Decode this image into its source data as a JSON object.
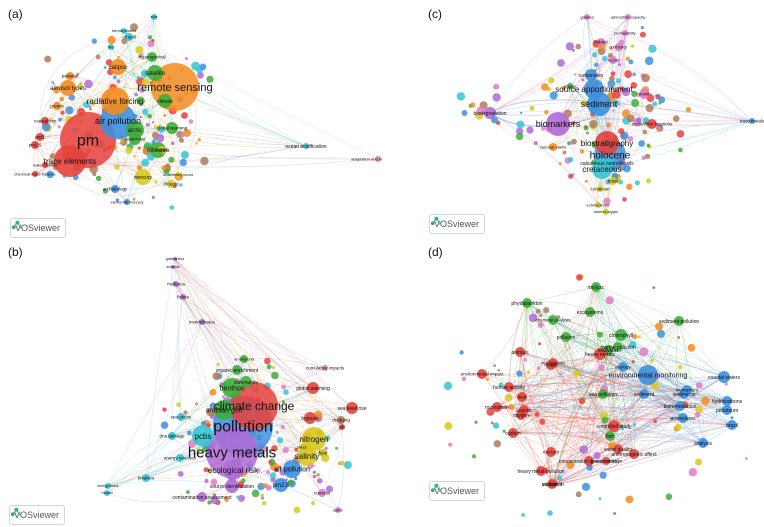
{
  "brand": "VOSviewer",
  "panels": [
    {
      "label": "(a)",
      "colors": {
        "red": "#e8413c",
        "orange": "#f48b1e",
        "green": "#3dae3a",
        "blue": "#3d8fe0",
        "yellow": "#d8c91f",
        "purple": "#b06ad6",
        "cyan": "#35c4d6",
        "pink": "#e27ac8",
        "brown": "#b07a5a"
      },
      "nodes": [
        {
          "t": "pm",
          "c": "red",
          "big": 3
        },
        {
          "t": "remote sensing",
          "c": "orange",
          "big": 2
        },
        {
          "t": "air pollution",
          "c": "blue",
          "big": 1
        },
        {
          "t": "trace elements",
          "c": "red",
          "big": 1
        },
        {
          "t": "radiative forcing",
          "c": "orange",
          "big": 1
        },
        {
          "t": "aerosol types",
          "c": "orange",
          "big": 0
        },
        {
          "t": "calipso",
          "c": "orange",
          "big": 0
        },
        {
          "t": "satellite",
          "c": "green",
          "big": 0
        },
        {
          "t": "arctic",
          "c": "green",
          "big": 0
        },
        {
          "t": "nitrogen",
          "c": "green",
          "big": 0
        },
        {
          "t": "mercury",
          "c": "yellow",
          "big": 0
        },
        {
          "t": "global warming",
          "c": "green",
          "big": 0
        },
        {
          "t": "bioaerosol",
          "c": "green",
          "big": 0
        },
        {
          "t": "climate",
          "c": "green",
          "big": 0
        },
        {
          "t": "hyperspectral",
          "c": "green",
          "big": 0
        },
        {
          "t": "oil spill",
          "c": "cyan",
          "big": 0
        },
        {
          "t": "thermal infrared",
          "c": "cyan",
          "big": 0
        },
        {
          "t": "fire",
          "c": "cyan",
          "big": 0
        },
        {
          "t": "soils",
          "c": "cyan",
          "big": 0
        },
        {
          "t": "pakistan",
          "c": "orange",
          "big": 0
        },
        {
          "t": "greece",
          "c": "orange",
          "big": 0
        },
        {
          "t": "coastal city",
          "c": "red",
          "big": 0
        },
        {
          "t": "pm1",
          "c": "red",
          "big": 0
        },
        {
          "t": "pm2.5",
          "c": "red",
          "big": 0
        },
        {
          "t": "chemical mass balance",
          "c": "red",
          "big": 0
        },
        {
          "t": "water column",
          "c": "red",
          "big": 0
        },
        {
          "t": "archaeology",
          "c": "blue",
          "big": 0
        },
        {
          "t": "elemental mercury",
          "c": "blue",
          "big": 0
        },
        {
          "t": "drought",
          "c": "yellow",
          "big": 0
        },
        {
          "t": "marine",
          "c": "yellow",
          "big": 0
        },
        {
          "t": "sedimentary record",
          "c": "yellow",
          "big": 0
        },
        {
          "t": "ocean acidification",
          "c": "cyan",
          "big": 0
        },
        {
          "t": "adaptation and mitigation strat",
          "c": "pink",
          "big": 0
        }
      ]
    },
    {
      "label": "(b)",
      "nodes": [
        {
          "t": "pollution",
          "c": "blue",
          "big": 3
        },
        {
          "t": "heavy metals",
          "c": "purple",
          "big": 3
        },
        {
          "t": "climate change",
          "c": "red",
          "big": 2
        },
        {
          "t": "benthos",
          "c": "green",
          "big": 1
        },
        {
          "t": "arabian gulf",
          "c": "green",
          "big": 1
        },
        {
          "t": "pcbs",
          "c": "cyan",
          "big": 1
        },
        {
          "t": "ecological risk",
          "c": "purple",
          "big": 1
        },
        {
          "t": "nitrogen",
          "c": "yellow",
          "big": 1
        },
        {
          "t": "salinity",
          "c": "yellow",
          "big": 1
        },
        {
          "t": "air pollution",
          "c": "blue",
          "big": 0
        },
        {
          "t": "pm2.5",
          "c": "blue",
          "big": 0
        },
        {
          "t": "source identification",
          "c": "purple",
          "big": 0
        },
        {
          "t": "contamination assessment",
          "c": "purple",
          "big": 0
        },
        {
          "t": "sea level rise",
          "c": "red",
          "big": 0
        },
        {
          "t": "global warming",
          "c": "red",
          "big": 0
        },
        {
          "t": "hypoxia",
          "c": "red",
          "big": 0
        },
        {
          "t": "community",
          "c": "green",
          "big": 0
        },
        {
          "t": "organic enrichment",
          "c": "green",
          "big": 0
        },
        {
          "t": "amphipoda",
          "c": "green",
          "big": 0
        },
        {
          "t": "sea urchin",
          "c": "cyan",
          "big": 0
        },
        {
          "t": "dna damage",
          "c": "cyan",
          "big": 0
        },
        {
          "t": "energy reserves",
          "c": "cyan",
          "big": 0
        },
        {
          "t": "bivalves",
          "c": "cyan",
          "big": 0
        },
        {
          "t": "invertebrates",
          "c": "purple",
          "big": 0
        },
        {
          "t": "fishes",
          "c": "purple",
          "big": 0
        },
        {
          "t": "mollusca",
          "c": "purple",
          "big": 0
        },
        {
          "t": "annelida",
          "c": "purple",
          "big": 0
        },
        {
          "t": "gastrotricha",
          "c": "purple",
          "big": 0
        },
        {
          "t": "cumulative impacts",
          "c": "pink",
          "big": 0
        },
        {
          "t": "dredging",
          "c": "brown",
          "big": 0
        },
        {
          "t": "food",
          "c": "yellow",
          "big": 0
        },
        {
          "t": "lakes",
          "c": "yellow",
          "big": 0
        },
        {
          "t": "currents",
          "c": "pink",
          "big": 0
        },
        {
          "t": "sulfur",
          "c": "pink",
          "big": 0
        },
        {
          "t": "ph",
          "c": "red",
          "big": 0
        },
        {
          "t": "energy status",
          "c": "cyan",
          "big": 0
        },
        {
          "t": "mussel",
          "c": "cyan",
          "big": 0
        }
      ]
    },
    {
      "label": "(c)",
      "nodes": [
        {
          "t": "holocene",
          "c": "blue",
          "big": 2
        },
        {
          "t": "biomarkers",
          "c": "purple",
          "big": 1
        },
        {
          "t": "sediment",
          "c": "blue",
          "big": 1
        },
        {
          "t": "biostratigraphy",
          "c": "red",
          "big": 1
        },
        {
          "t": "source apportionment",
          "c": "blue",
          "big": 1
        },
        {
          "t": "cretaceous",
          "c": "cyan",
          "big": 1
        },
        {
          "t": "calcareous nannofossils",
          "c": "cyan",
          "big": 0
        },
        {
          "t": "biodegradation",
          "c": "purple",
          "big": 0
        },
        {
          "t": "carbonates",
          "c": "blue",
          "big": 0
        },
        {
          "t": "ecosystem functions",
          "c": "red",
          "big": 0
        },
        {
          "t": "growth",
          "c": "pink",
          "big": 0
        },
        {
          "t": "porosity",
          "c": "pink",
          "big": 0
        },
        {
          "t": "permeability",
          "c": "pink",
          "big": 0
        },
        {
          "t": "habitat",
          "c": "pink",
          "big": 0
        },
        {
          "t": "gamma",
          "c": "pink",
          "big": 0
        },
        {
          "t": "adsorption capacity",
          "c": "pink",
          "big": 0
        },
        {
          "t": "foram",
          "c": "pink",
          "big": 0
        },
        {
          "t": "vascular plants",
          "c": "orange",
          "big": 0
        },
        {
          "t": "brazil",
          "c": "yellow",
          "big": 0
        },
        {
          "t": "coniacian",
          "c": "yellow",
          "big": 0
        },
        {
          "t": "echinoderms",
          "c": "yellow",
          "big": 0
        },
        {
          "t": "bacteria oxygen",
          "c": "yellow",
          "big": 0
        },
        {
          "t": "trace metals",
          "c": "blue",
          "big": 0
        },
        {
          "t": "anoxia",
          "c": "green",
          "big": 0
        }
      ]
    },
    {
      "label": "(d)",
      "nodes": [
        {
          "t": "environmental monitoring",
          "c": "blue",
          "big": 1
        },
        {
          "t": "chlorophyll",
          "c": "green",
          "big": 0
        },
        {
          "t": "marine pollution",
          "c": "green",
          "big": 0
        },
        {
          "t": "pollution",
          "c": "green",
          "big": 0
        },
        {
          "t": "sediment pollution",
          "c": "green",
          "big": 0
        },
        {
          "t": "mollusc",
          "c": "green",
          "big": 0
        },
        {
          "t": "ecosystems",
          "c": "green",
          "big": 0
        },
        {
          "t": "phytoplankton",
          "c": "green",
          "big": 0
        },
        {
          "t": "chemical analysis",
          "c": "green",
          "big": 0
        },
        {
          "t": "seawater",
          "c": "green",
          "big": 0
        },
        {
          "t": "sea pollution",
          "c": "green",
          "big": 0
        },
        {
          "t": "fish",
          "c": "green",
          "big": 0
        },
        {
          "t": "sediments",
          "c": "blue",
          "big": 0
        },
        {
          "t": "coastal waters",
          "c": "blue",
          "big": 0
        },
        {
          "t": "hydrocarbons",
          "c": "blue",
          "big": 0
        },
        {
          "t": "petroleum",
          "c": "blue",
          "big": 0
        },
        {
          "t": "bioremediation",
          "c": "blue",
          "big": 0
        },
        {
          "t": "sediment",
          "c": "blue",
          "big": 0
        },
        {
          "t": "procedures",
          "c": "blue",
          "big": 0
        },
        {
          "t": "heavy metals",
          "c": "red",
          "big": 0
        },
        {
          "t": "animals",
          "c": "red",
          "big": 0
        },
        {
          "t": "human activity",
          "c": "red",
          "big": 0
        },
        {
          "t": "environmental impact",
          "c": "red",
          "big": 0
        },
        {
          "t": "controlled study",
          "c": "red",
          "big": 0
        },
        {
          "t": "water quality",
          "c": "red",
          "big": 0
        },
        {
          "t": "concentration (parameters)",
          "c": "red",
          "big": 0
        },
        {
          "t": "anthropogenic effect",
          "c": "red",
          "big": 0
        },
        {
          "t": "heavy metal pollution",
          "c": "red",
          "big": 0
        },
        {
          "t": "carbon",
          "c": "red",
          "big": 0
        },
        {
          "t": "sediment",
          "c": "red",
          "big": 0
        },
        {
          "t": "arsenic",
          "c": "red",
          "big": 0
        },
        {
          "t": "vanadium",
          "c": "red",
          "big": 0
        },
        {
          "t": "oxygen",
          "c": "red",
          "big": 0
        },
        {
          "t": "metals",
          "c": "red",
          "big": 0
        },
        {
          "t": "genetic variation",
          "c": "red",
          "big": 0
        },
        {
          "t": "nonhuman",
          "c": "red",
          "big": 0
        },
        {
          "t": "brazil",
          "c": "blue",
          "big": 0
        },
        {
          "t": "analysis",
          "c": "blue",
          "big": 0
        },
        {
          "t": "biomarkers",
          "c": "blue",
          "big": 0
        },
        {
          "t": "ecology",
          "c": "blue",
          "big": 0
        },
        {
          "t": "manganese",
          "c": "red",
          "big": 0
        },
        {
          "t": "lead",
          "c": "red",
          "big": 0
        },
        {
          "t": "mercury",
          "c": "red",
          "big": 0
        }
      ]
    }
  ]
}
